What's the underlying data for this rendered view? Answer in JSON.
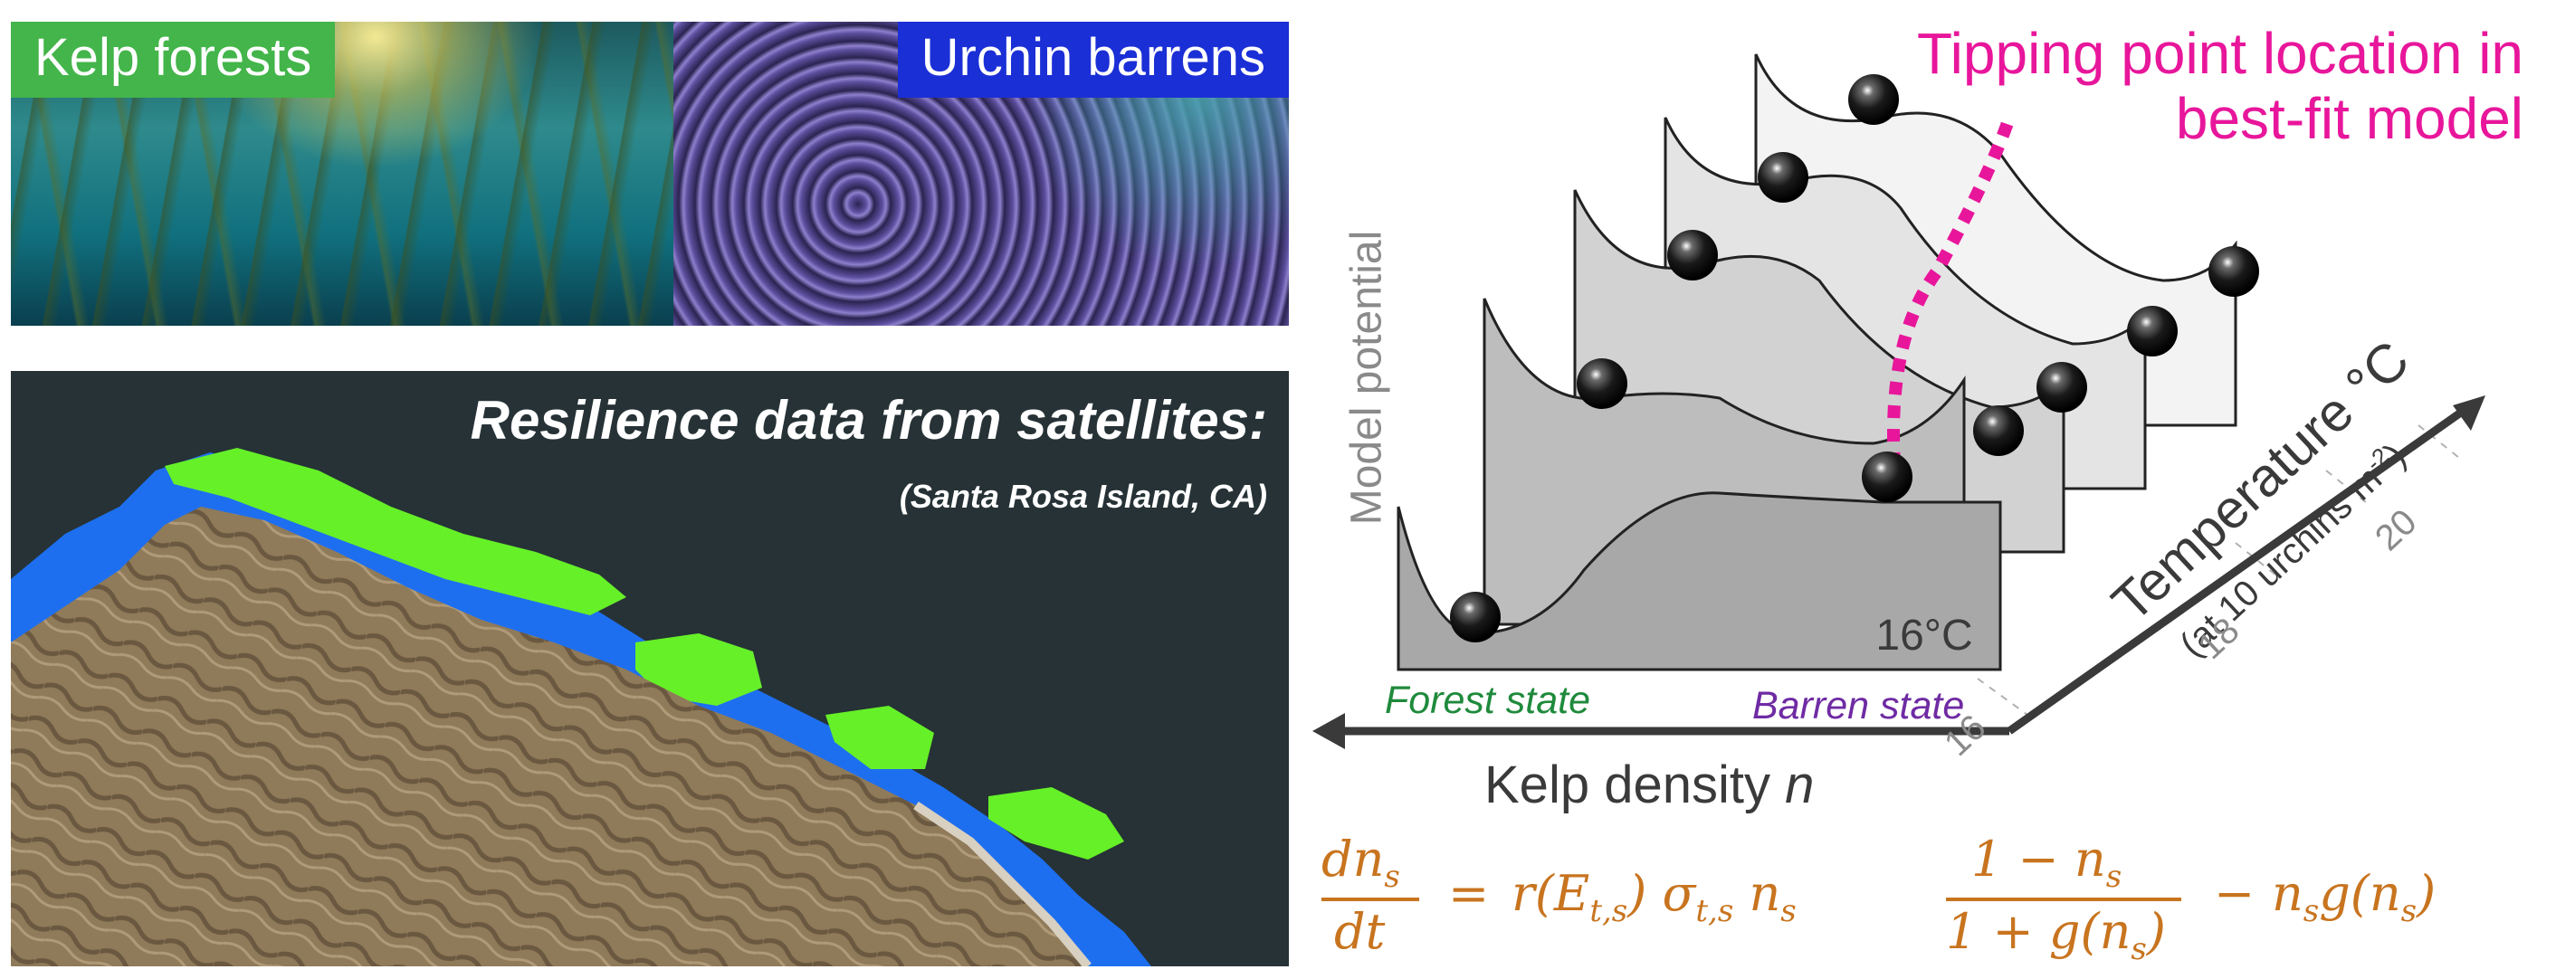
{
  "photos": {
    "kelp": {
      "label": "Kelp forests",
      "label_color": "#43b54a"
    },
    "urchin": {
      "label": "Urchin barrens",
      "label_color": "#1b2fd6"
    }
  },
  "satellite": {
    "title": "Resilience data from satellites:",
    "subtitle": "(Santa Rosa Island, CA)",
    "colors": {
      "background": "#263236",
      "kelp_green": "#66f028",
      "kelp_blue": "#1e6ff0",
      "land": "#8a7556"
    }
  },
  "diagram": {
    "tipping_label": "Tipping point location in best-fit model",
    "tipping_color": "#e8169b",
    "y_axis_label": "Model potential",
    "x_axis_label": "Kelp density",
    "x_axis_variable": "n",
    "forest_state": "Forest state",
    "barren_state": "Barren state",
    "front_temperature": "16°C",
    "z_axis_title": "Temperature °C",
    "z_axis_subtitle_prefix": "(at 10 urchins m",
    "z_axis_subtitle_exp": "-2",
    "z_axis_subtitle_suffix": ")",
    "z_ticks": [
      "16",
      "18",
      "20"
    ]
  },
  "equation": {
    "lhs_num": "dn",
    "lhs_num_sub": "s",
    "lhs_den": "dt",
    "equals": "=",
    "term1": "r(E",
    "term1_sub": "t,s",
    "term1_close": ")",
    "sigma": "σ",
    "sigma_sub": "t,s",
    "n": "n",
    "n_sub": "s",
    "frac_num": "1 − n",
    "frac_num_sub": "s",
    "frac_den": "1 + g(n",
    "frac_den_sub": "s",
    "frac_den_close": ")",
    "minus": "−",
    "tail": "n",
    "tail_sub": "s",
    "tail_rest": "g(n",
    "tail_sub2": "s",
    "tail_close": ")",
    "color": "#c8741f"
  }
}
